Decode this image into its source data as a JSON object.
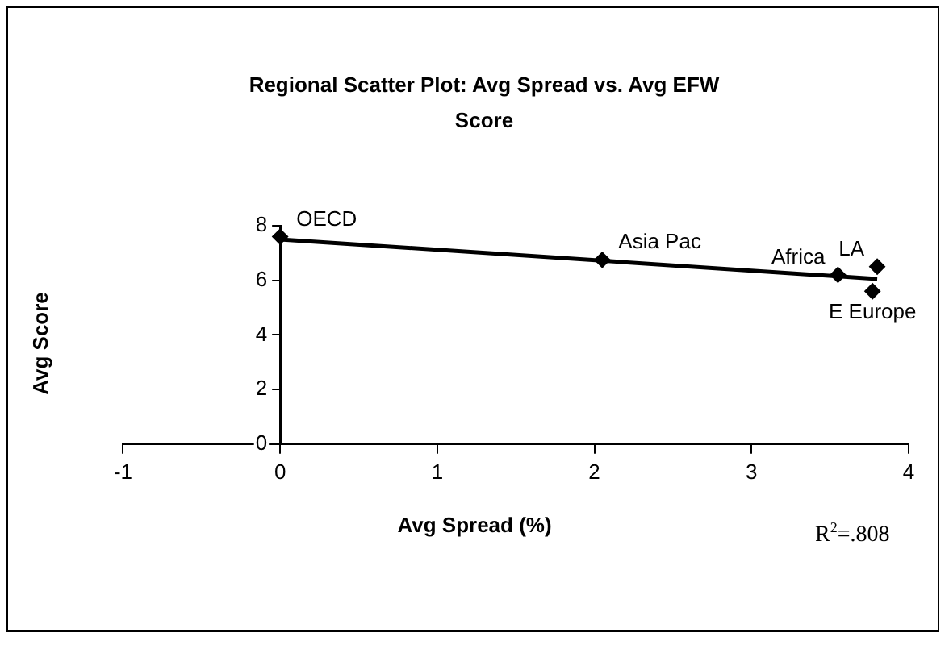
{
  "chart_data": {
    "type": "scatter",
    "title": "Regional Scatter Plot: Avg Spread vs. Avg EFW Score",
    "xlabel": "Avg Spread (%)",
    "ylabel": "Avg Score",
    "series": [
      {
        "type": "scatter",
        "color": "#000000",
        "x": [
          0,
          2.05,
          3.55,
          3.8,
          3.77
        ],
        "values": [
          7.6,
          6.75,
          6.2,
          6.5,
          5.6
        ],
        "marker": "diamond"
      },
      {
        "type": "line",
        "color": "#000000",
        "x": [
          0,
          3.8
        ],
        "values": [
          7.5,
          6.05
        ],
        "marker": "none"
      }
    ],
    "xlim": [
      -1,
      4
    ],
    "xticks": [
      -1,
      0,
      1,
      2,
      3,
      4
    ],
    "ylim": [
      0,
      8
    ],
    "yticks": [
      0,
      2,
      4,
      6,
      8
    ],
    "grid": false,
    "legend": false,
    "annotations": [
      {
        "text": "OECD",
        "x": 0,
        "y": 7.6
      },
      {
        "text": "Asia Pac",
        "x": 2.05,
        "y": 6.75
      },
      {
        "text": "Africa",
        "x": 3.55,
        "y": 6.2
      },
      {
        "text": "LA",
        "x": 3.8,
        "y": 6.5
      },
      {
        "text": "E Europe",
        "x": 3.77,
        "y": 5.6
      },
      "R$^{2}$=.808"
    ]
  }
}
